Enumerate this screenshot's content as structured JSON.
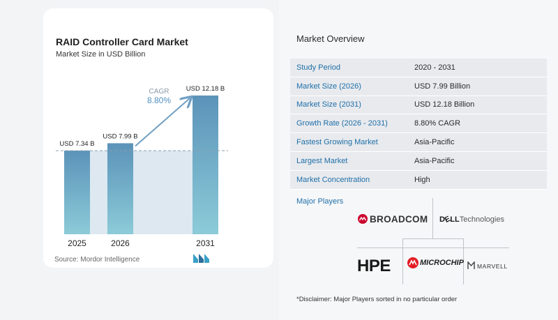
{
  "chart": {
    "title": "RAID Controller Card Market",
    "subtitle": "Market Size in USD Billion",
    "source": "Source:  Mordor Intelligence",
    "cagr_label": "CAGR",
    "cagr_value": "8.80%"
  },
  "chart_data": {
    "type": "bar",
    "title": "RAID Controller Card Market",
    "subtitle": "Market Size in USD Billion",
    "categories": [
      "2025",
      "2026",
      "2031"
    ],
    "values": [
      7.34,
      7.99,
      12.18
    ],
    "data_labels": [
      "USD 7.34 B",
      "USD 7.99 B",
      "USD 12.18 B"
    ],
    "ylim": [
      0,
      12.18
    ],
    "annotation": "CAGR 8.80%",
    "bar_color_top": "#5b93b9",
    "bar_color_bottom": "#8ccbd8",
    "shade_color": "#dde8f1",
    "grid": false
  },
  "overview": {
    "title": "Market Overview",
    "rows": [
      {
        "key": "Study Period",
        "value": "2020 - 2031"
      },
      {
        "key": "Market Size (2026)",
        "value": "USD 7.99 Billion"
      },
      {
        "key": "Market Size (2031)",
        "value": "USD 12.18 Billion"
      },
      {
        "key": "Growth Rate (2026 - 2031)",
        "value": "8.80% CAGR"
      },
      {
        "key": "Fastest Growing Market",
        "value": "Asia-Pacific"
      },
      {
        "key": "Largest Market",
        "value": "Asia-Pacific"
      },
      {
        "key": "Market Concentration",
        "value": "High"
      }
    ]
  },
  "players": {
    "title": "Major Players",
    "broadcom": "BROADCOM",
    "dell_a": "D",
    "dell_b": "LL",
    "dell_c": "Technologies",
    "hpe": "HPE",
    "microchip": "MICROCHIP",
    "marvell": "MARVELL"
  },
  "disclaimer": "*Disclaimer: Major Players sorted in no particular order",
  "colors": {
    "accent": "#1f6fa7",
    "broadcom_red": "#cc092f",
    "microchip_red": "#e31c24"
  }
}
